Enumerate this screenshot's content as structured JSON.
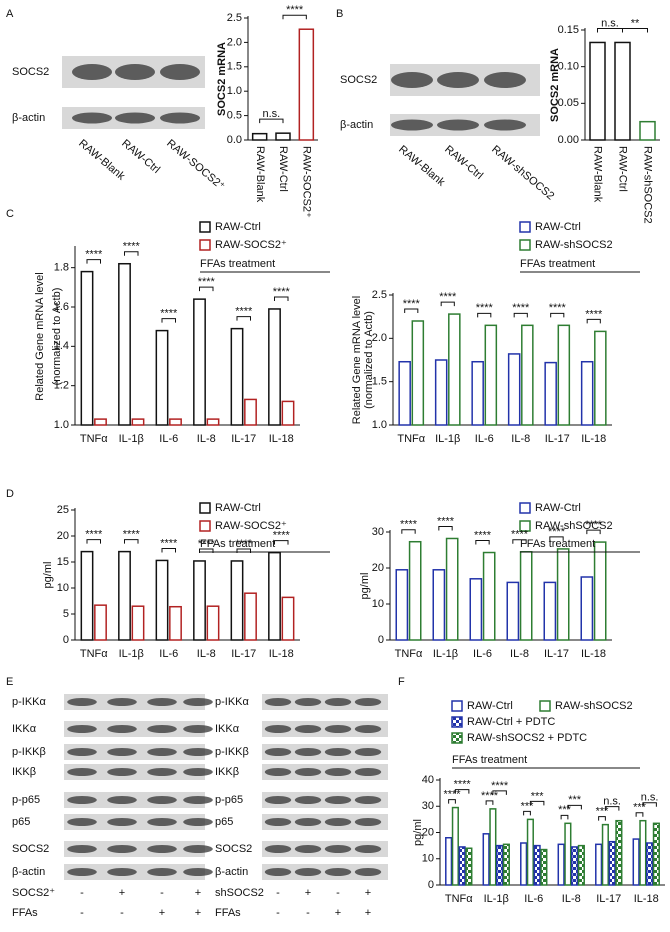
{
  "panel_labels": [
    "A",
    "B",
    "C",
    "D",
    "E",
    "F"
  ],
  "blots": [
    {
      "rows": [
        "SOCS2",
        "β-actin"
      ],
      "lanes": [
        "RAW-Blank",
        "RAW-Ctrl",
        "RAW-SOCS2⁺"
      ]
    },
    {
      "rows": [
        "SOCS2",
        "β-actin"
      ],
      "lanes": [
        "RAW-Blank",
        "RAW-Ctrl",
        "RAW-shSOCS2"
      ]
    },
    {
      "rows": [
        "p-IKKα",
        "IKKα",
        "p-IKKβ",
        "IKKβ",
        "p-p65",
        "p65",
        "SOCS2",
        "β-actin"
      ],
      "conditions": [
        {
          "label": "SOCS2⁺",
          "signs": [
            "-",
            "+",
            "-",
            "+"
          ]
        },
        {
          "label": "FFAs",
          "signs": [
            "-",
            "-",
            "+",
            "+"
          ]
        }
      ]
    },
    {
      "rows": [
        "p-IKKα",
        "IKKα",
        "p-IKKβ",
        "IKKβ",
        "p-p65",
        "p65",
        "SOCS2",
        "β-actin"
      ],
      "conditions": [
        {
          "label": "shSOCS2",
          "signs": [
            "-",
            "+",
            "-",
            "+"
          ]
        },
        {
          "label": "FFAs",
          "signs": [
            "-",
            "-",
            "+",
            "+"
          ]
        }
      ]
    }
  ],
  "chart_data": [
    {
      "type": "bar",
      "ylabel": [
        "SOCS2 mRNA"
      ],
      "categories": [
        "RAW-Blank",
        "RAW-Ctrl",
        "RAW-SOCS2⁺"
      ],
      "values": [
        0.13,
        0.14,
        2.27
      ],
      "colors": [
        "#111111",
        "#111111",
        "#b22222"
      ],
      "ylim": [
        0,
        2.5
      ],
      "yticks": [
        {
          "value": 0,
          "label": "0.0"
        },
        0.5,
        {
          "value": 1,
          "label": "1.0"
        },
        1.5,
        {
          "value": 2,
          "label": "2.0"
        },
        2.5
      ],
      "annotations": [
        "n.s.",
        "****"
      ]
    },
    {
      "type": "bar",
      "ylabel": [
        "SOCS2 mRNA"
      ],
      "categories": [
        "RAW-Blank",
        "RAW-Ctrl",
        "RAW-shSOCS2"
      ],
      "values": [
        0.133,
        0.133,
        0.025
      ],
      "colors": [
        "#111111",
        "#111111",
        "#2e7d32"
      ],
      "ylim": [
        0,
        0.15
      ],
      "yticks": [
        {
          "value": 0,
          "label": "0.00"
        },
        0.05,
        {
          "value": 0.1,
          "label": "0.10"
        },
        0.15
      ],
      "annotations": [
        "n.s.",
        "**"
      ]
    },
    {
      "type": "grouped-bar",
      "ylabel": [
        "Related Gene mRNA level",
        "(normalized to Actb)"
      ],
      "note": "FFAs treatment",
      "categories": [
        "TNFα",
        "IL-1β",
        "IL-6",
        "IL-8",
        "IL-17",
        "IL-18"
      ],
      "series": [
        {
          "name": "RAW-Ctrl",
          "color": "#111111",
          "values": [
            1.78,
            1.82,
            1.48,
            1.64,
            1.49,
            1.59
          ]
        },
        {
          "name": "RAW-SOCS2⁺",
          "color": "#b22222",
          "values": [
            1.03,
            1.03,
            1.03,
            1.03,
            1.13,
            1.12
          ]
        }
      ],
      "ylim": [
        1,
        1.9
      ],
      "yticks": [
        {
          "value": 1,
          "label": "1.0"
        },
        1.2,
        1.4,
        1.6,
        1.8
      ],
      "annotations": [
        "****",
        "****",
        "****",
        "****",
        "****",
        "****"
      ]
    },
    {
      "type": "grouped-bar",
      "ylabel": [
        "Related Gene mRNA level",
        "(normalized to Actb)"
      ],
      "note": "FFAs treatment",
      "categories": [
        "TNFα",
        "IL-1β",
        "IL-6",
        "IL-8",
        "IL-17",
        "IL-18"
      ],
      "series": [
        {
          "name": "RAW-Ctrl",
          "color": "#2233aa",
          "values": [
            1.73,
            1.75,
            1.73,
            1.82,
            1.72,
            1.73
          ]
        },
        {
          "name": "RAW-shSOCS2",
          "color": "#2e7d32",
          "values": [
            2.2,
            2.28,
            2.15,
            2.15,
            2.15,
            2.08
          ]
        }
      ],
      "ylim": [
        1,
        2.5
      ],
      "yticks": [
        {
          "value": 1,
          "label": "1.0"
        },
        1.5,
        {
          "value": 2,
          "label": "2.0"
        },
        2.5
      ],
      "annotations": [
        "****",
        "****",
        "****",
        "****",
        "****",
        "****"
      ]
    },
    {
      "type": "grouped-bar",
      "ylabel": [
        "pg/ml"
      ],
      "note": "FFAs treatment",
      "categories": [
        "TNFα",
        "IL-1β",
        "IL-6",
        "IL-8",
        "IL-17",
        "IL-18"
      ],
      "series": [
        {
          "name": "RAW-Ctrl",
          "color": "#111111",
          "values": [
            17,
            17,
            15.3,
            15.2,
            15.2,
            16.8
          ]
        },
        {
          "name": "RAW-SOCS2⁺",
          "color": "#b22222",
          "values": [
            6.7,
            6.5,
            6.4,
            6.5,
            9,
            8.2
          ]
        }
      ],
      "ylim": [
        0,
        25
      ],
      "yticks": [
        0,
        5,
        10,
        15,
        20,
        25
      ],
      "annotations": [
        "****",
        "****",
        "****",
        "****",
        "****",
        "****"
      ]
    },
    {
      "type": "grouped-bar",
      "ylabel": [
        "pg/ml"
      ],
      "note": "FFAs treatment",
      "categories": [
        "TNFα",
        "IL-1β",
        "IL-6",
        "IL-8",
        "IL-17",
        "IL-18"
      ],
      "series": [
        {
          "name": "RAW-Ctrl",
          "color": "#2233aa",
          "values": [
            19.5,
            19.5,
            17,
            16,
            16,
            17.5
          ]
        },
        {
          "name": "RAW-shSOCS2",
          "color": "#2e7d32",
          "values": [
            27.3,
            28.2,
            24.3,
            24.5,
            25.3,
            27.2
          ]
        }
      ],
      "ylim": [
        0,
        30
      ],
      "yticks": [
        0,
        10,
        20,
        30
      ],
      "annotations": [
        "****",
        "****",
        "****",
        "****",
        "****",
        "****"
      ]
    },
    {
      "type": "grouped-bar",
      "ylabel": [
        "pg/ml"
      ],
      "note": "FFAs treatment",
      "categories": [
        "TNFα",
        "IL-1β",
        "IL-6",
        "IL-8",
        "IL-17",
        "IL-18"
      ],
      "series": [
        {
          "name": "RAW-Ctrl",
          "color": "#2233aa",
          "values": [
            18,
            19.5,
            16,
            15.5,
            15.5,
            17.5
          ]
        },
        {
          "name": "RAW-shSOCS2",
          "color": "#2e7d32",
          "values": [
            29.5,
            29,
            25,
            23.5,
            23,
            24.5
          ]
        },
        {
          "name": "RAW-Ctrl + PDTC",
          "color": "#2233aa",
          "pattern": "checker",
          "values": [
            14.5,
            15,
            15,
            14.5,
            16.5,
            16
          ]
        },
        {
          "name": "RAW-shSOCS2 + PDTC",
          "color": "#2e7d32",
          "pattern": "checker",
          "values": [
            14,
            15.5,
            13.5,
            15,
            24.5,
            23.5
          ]
        }
      ],
      "ylim": [
        0,
        40
      ],
      "yticks": [
        0,
        10,
        20,
        30,
        40
      ],
      "annotations": [
        "****",
        "****",
        "****",
        "****",
        "***",
        "***",
        "***",
        "***",
        "***",
        "n.s.",
        "***",
        "n.s."
      ]
    }
  ]
}
